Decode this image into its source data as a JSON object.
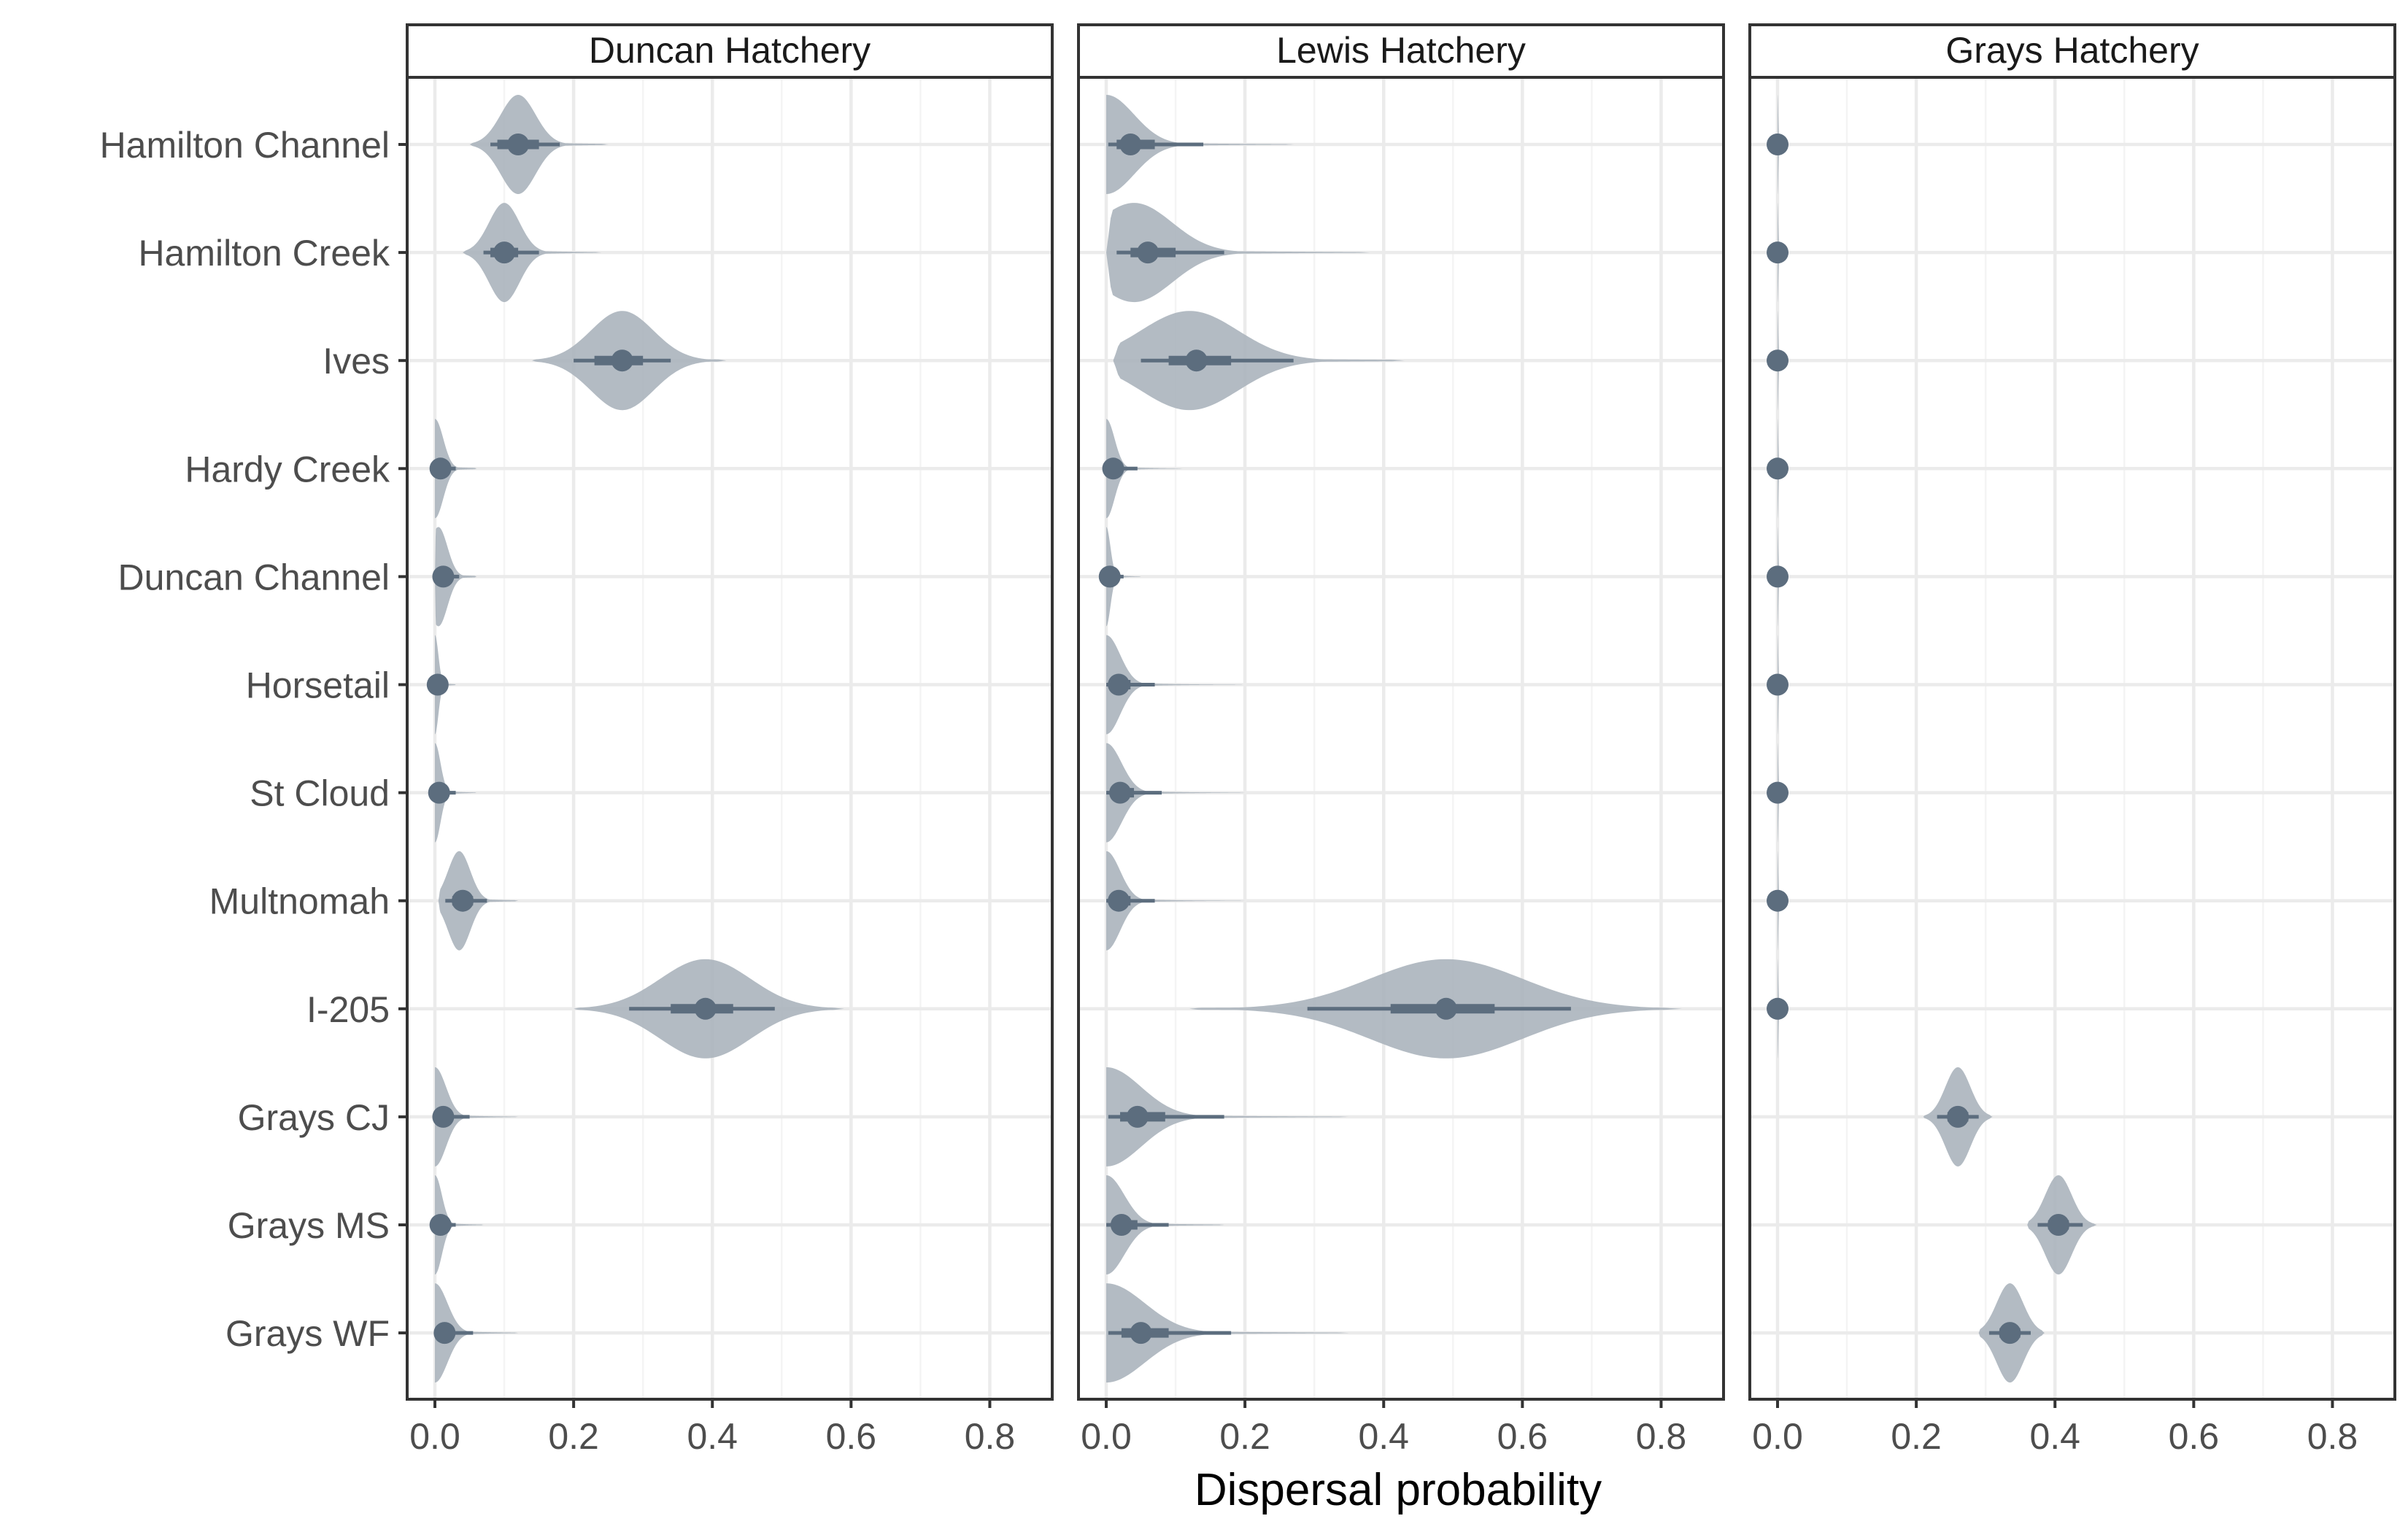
{
  "chart_data": {
    "type": "violin",
    "xlabel": "Dispersal probability",
    "ylabel": "",
    "xlim": [
      -0.04,
      0.89
    ],
    "x_ticks": [
      0.0,
      0.2,
      0.4,
      0.6,
      0.8
    ],
    "x_tick_labels": [
      "0.0",
      "0.2",
      "0.4",
      "0.6",
      "0.8"
    ],
    "grid": true,
    "legend": "none",
    "colors": {
      "violin": "#a8b2bb",
      "interval": "#5c6d7e",
      "point": "#5c6d7e"
    },
    "categories": [
      "Hamilton Channel",
      "Hamilton Creek",
      "Ives",
      "Hardy Creek",
      "Duncan Channel",
      "Horsetail",
      "St Cloud",
      "Multnomah",
      "I-205",
      "Grays CJ",
      "Grays MS",
      "Grays WF"
    ],
    "panels": [
      {
        "name": "Duncan Hatchery",
        "series": [
          {
            "category": "Hamilton Channel",
            "median": 0.12,
            "ci66": [
              0.09,
              0.15
            ],
            "ci95": [
              0.08,
              0.18
            ],
            "range": [
              0.05,
              0.25
            ],
            "mode": 0.12,
            "mode_sd": 0.025
          },
          {
            "category": "Hamilton Creek",
            "median": 0.1,
            "ci66": [
              0.08,
              0.12
            ],
            "ci95": [
              0.07,
              0.15
            ],
            "range": [
              0.04,
              0.24
            ],
            "mode": 0.1,
            "mode_sd": 0.022
          },
          {
            "category": "Ives",
            "median": 0.27,
            "ci66": [
              0.23,
              0.3
            ],
            "ci95": [
              0.2,
              0.34
            ],
            "range": [
              0.14,
              0.42
            ],
            "mode": 0.27,
            "mode_sd": 0.045
          },
          {
            "category": "Hardy Creek",
            "median": 0.008,
            "ci66": [
              0.003,
              0.015
            ],
            "ci95": [
              0.0,
              0.03
            ],
            "range": [
              0.0,
              0.06
            ],
            "mode": 0.0,
            "mode_sd": 0.012
          },
          {
            "category": "Duncan Channel",
            "median": 0.012,
            "ci66": [
              0.005,
              0.02
            ],
            "ci95": [
              0.0,
              0.035
            ],
            "range": [
              0.0,
              0.06
            ],
            "mode": 0.005,
            "mode_sd": 0.013
          },
          {
            "category": "Horsetail",
            "median": 0.004,
            "ci66": [
              0.001,
              0.008
            ],
            "ci95": [
              0.0,
              0.015
            ],
            "range": [
              0.0,
              0.03
            ],
            "mode": 0.0,
            "mode_sd": 0.005
          },
          {
            "category": "St Cloud",
            "median": 0.006,
            "ci66": [
              0.002,
              0.012
            ],
            "ci95": [
              0.0,
              0.03
            ],
            "range": [
              0.0,
              0.06
            ],
            "mode": 0.0,
            "mode_sd": 0.008
          },
          {
            "category": "Multnomah",
            "median": 0.04,
            "ci66": [
              0.025,
              0.055
            ],
            "ci95": [
              0.015,
              0.075
            ],
            "range": [
              0.005,
              0.12
            ],
            "mode": 0.035,
            "mode_sd": 0.016
          },
          {
            "category": "I-205",
            "median": 0.39,
            "ci66": [
              0.34,
              0.43
            ],
            "ci95": [
              0.28,
              0.49
            ],
            "range": [
              0.2,
              0.59
            ],
            "mode": 0.39,
            "mode_sd": 0.065
          },
          {
            "category": "Grays CJ",
            "median": 0.012,
            "ci66": [
              0.004,
              0.022
            ],
            "ci95": [
              0.0,
              0.05
            ],
            "range": [
              0.0,
              0.12
            ],
            "mode": 0.0,
            "mode_sd": 0.016
          },
          {
            "category": "Grays MS",
            "median": 0.008,
            "ci66": [
              0.003,
              0.015
            ],
            "ci95": [
              0.0,
              0.03
            ],
            "range": [
              0.0,
              0.07
            ],
            "mode": 0.0,
            "mode_sd": 0.01
          },
          {
            "category": "Grays WF",
            "median": 0.014,
            "ci66": [
              0.005,
              0.025
            ],
            "ci95": [
              0.0,
              0.055
            ],
            "range": [
              0.0,
              0.12
            ],
            "mode": 0.0,
            "mode_sd": 0.018
          }
        ]
      },
      {
        "name": "Lewis Hatchery",
        "series": [
          {
            "category": "Hamilton Channel",
            "median": 0.035,
            "ci66": [
              0.015,
              0.07
            ],
            "ci95": [
              0.003,
              0.14
            ],
            "range": [
              0.0,
              0.27
            ],
            "mode": 0.0,
            "mode_sd": 0.04
          },
          {
            "category": "Hamilton Creek",
            "median": 0.06,
            "ci66": [
              0.035,
              0.1
            ],
            "ci95": [
              0.015,
              0.17
            ],
            "range": [
              0.0,
              0.38
            ],
            "mode": 0.04,
            "mode_sd": 0.055
          },
          {
            "category": "Ives",
            "median": 0.13,
            "ci66": [
              0.09,
              0.18
            ],
            "ci95": [
              0.05,
              0.27
            ],
            "range": [
              0.01,
              0.43
            ],
            "mode": 0.12,
            "mode_sd": 0.07
          },
          {
            "category": "Hardy Creek",
            "median": 0.01,
            "ci66": [
              0.004,
              0.02
            ],
            "ci95": [
              0.0,
              0.045
            ],
            "range": [
              0.0,
              0.11
            ],
            "mode": 0.0,
            "mode_sd": 0.012
          },
          {
            "category": "Duncan Channel",
            "median": 0.005,
            "ci66": [
              0.002,
              0.01
            ],
            "ci95": [
              0.0,
              0.025
            ],
            "range": [
              0.0,
              0.05
            ],
            "mode": 0.0,
            "mode_sd": 0.006
          },
          {
            "category": "Horsetail",
            "median": 0.018,
            "ci66": [
              0.007,
              0.035
            ],
            "ci95": [
              0.0,
              0.07
            ],
            "range": [
              0.0,
              0.2
            ],
            "mode": 0.0,
            "mode_sd": 0.02
          },
          {
            "category": "St Cloud",
            "median": 0.02,
            "ci66": [
              0.008,
              0.04
            ],
            "ci95": [
              0.0,
              0.08
            ],
            "range": [
              0.0,
              0.2
            ],
            "mode": 0.0,
            "mode_sd": 0.022
          },
          {
            "category": "Multnomah",
            "median": 0.018,
            "ci66": [
              0.007,
              0.035
            ],
            "ci95": [
              0.0,
              0.07
            ],
            "range": [
              0.0,
              0.2
            ],
            "mode": 0.0,
            "mode_sd": 0.02
          },
          {
            "category": "I-205",
            "median": 0.49,
            "ci66": [
              0.41,
              0.56
            ],
            "ci95": [
              0.29,
              0.67
            ],
            "range": [
              0.12,
              0.83
            ],
            "mode": 0.49,
            "mode_sd": 0.11
          },
          {
            "category": "Grays CJ",
            "median": 0.045,
            "ci66": [
              0.02,
              0.085
            ],
            "ci95": [
              0.003,
              0.17
            ],
            "range": [
              0.0,
              0.35
            ],
            "mode": 0.0,
            "mode_sd": 0.05
          },
          {
            "category": "Grays MS",
            "median": 0.022,
            "ci66": [
              0.008,
              0.045
            ],
            "ci95": [
              0.0,
              0.09
            ],
            "range": [
              0.0,
              0.17
            ],
            "mode": 0.0,
            "mode_sd": 0.026
          },
          {
            "category": "Grays WF",
            "median": 0.05,
            "ci66": [
              0.022,
              0.09
            ],
            "ci95": [
              0.003,
              0.18
            ],
            "range": [
              0.0,
              0.35
            ],
            "mode": 0.0,
            "mode_sd": 0.055
          }
        ]
      },
      {
        "name": "Grays Hatchery",
        "series": [
          {
            "category": "Hamilton Channel",
            "median": 0.0,
            "ci66": [
              0.0,
              0.0
            ],
            "ci95": [
              0.0,
              0.0
            ],
            "range": [
              0.0,
              0.003
            ],
            "mode": 0.0,
            "mode_sd": 0.001
          },
          {
            "category": "Hamilton Creek",
            "median": 0.0,
            "ci66": [
              0.0,
              0.0
            ],
            "ci95": [
              0.0,
              0.0
            ],
            "range": [
              0.0,
              0.003
            ],
            "mode": 0.0,
            "mode_sd": 0.001
          },
          {
            "category": "Ives",
            "median": 0.0,
            "ci66": [
              0.0,
              0.0
            ],
            "ci95": [
              0.0,
              0.0
            ],
            "range": [
              0.0,
              0.003
            ],
            "mode": 0.0,
            "mode_sd": 0.001
          },
          {
            "category": "Hardy Creek",
            "median": 0.0,
            "ci66": [
              0.0,
              0.0
            ],
            "ci95": [
              0.0,
              0.0
            ],
            "range": [
              0.0,
              0.003
            ],
            "mode": 0.0,
            "mode_sd": 0.001
          },
          {
            "category": "Duncan Channel",
            "median": 0.0,
            "ci66": [
              0.0,
              0.0
            ],
            "ci95": [
              0.0,
              0.0
            ],
            "range": [
              0.0,
              0.003
            ],
            "mode": 0.0,
            "mode_sd": 0.001
          },
          {
            "category": "Horsetail",
            "median": 0.0,
            "ci66": [
              0.0,
              0.0
            ],
            "ci95": [
              0.0,
              0.0
            ],
            "range": [
              0.0,
              0.003
            ],
            "mode": 0.0,
            "mode_sd": 0.001
          },
          {
            "category": "St Cloud",
            "median": 0.0,
            "ci66": [
              0.0,
              0.0
            ],
            "ci95": [
              0.0,
              0.0
            ],
            "range": [
              0.0,
              0.003
            ],
            "mode": 0.0,
            "mode_sd": 0.001
          },
          {
            "category": "Multnomah",
            "median": 0.0,
            "ci66": [
              0.0,
              0.0
            ],
            "ci95": [
              0.0,
              0.0
            ],
            "range": [
              0.0,
              0.003
            ],
            "mode": 0.0,
            "mode_sd": 0.001
          },
          {
            "category": "I-205",
            "median": 0.0,
            "ci66": [
              0.0,
              0.0
            ],
            "ci95": [
              0.0,
              0.0
            ],
            "range": [
              0.0,
              0.003
            ],
            "mode": 0.0,
            "mode_sd": 0.001
          },
          {
            "category": "Grays CJ",
            "median": 0.26,
            "ci66": [
              0.245,
              0.275
            ],
            "ci95": [
              0.23,
              0.29
            ],
            "range": [
              0.21,
              0.31
            ],
            "mode": 0.26,
            "mode_sd": 0.018
          },
          {
            "category": "Grays MS",
            "median": 0.405,
            "ci66": [
              0.39,
              0.42
            ],
            "ci95": [
              0.375,
              0.44
            ],
            "range": [
              0.36,
              0.46
            ],
            "mode": 0.405,
            "mode_sd": 0.019
          },
          {
            "category": "Grays WF",
            "median": 0.335,
            "ci66": [
              0.32,
              0.35
            ],
            "ci95": [
              0.305,
              0.365
            ],
            "range": [
              0.29,
              0.385
            ],
            "mode": 0.335,
            "mode_sd": 0.019
          }
        ]
      }
    ]
  }
}
